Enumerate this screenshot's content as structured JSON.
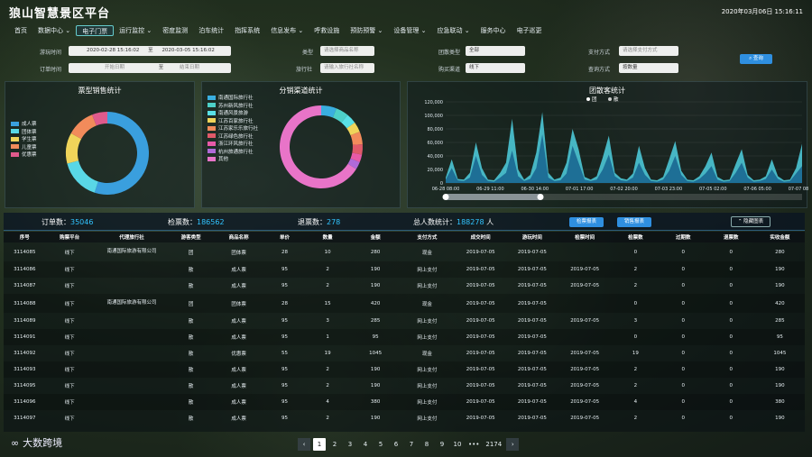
{
  "app": {
    "title": "狼山智慧景区平台",
    "clock": "2020年03月06日 15:16:11"
  },
  "nav": [
    "首页",
    "数据中心",
    "电子门票",
    "运行监控",
    "密度监测",
    "泊车统计",
    "指挥系统",
    "信息发布",
    "呼救设施",
    "预防预警",
    "设备管理",
    "应急联动",
    "服务中心",
    "电子巡更"
  ],
  "nav_dropdown": [
    false,
    true,
    false,
    true,
    false,
    false,
    false,
    true,
    false,
    true,
    true,
    true,
    false,
    false
  ],
  "nav_active": 2,
  "filters": {
    "travel_time_label": "游玩时间",
    "travel_start": "2020-02-28 15:16:02",
    "travel_end": "2020-03-05 15:16:02",
    "to1": "至",
    "order_time_label": "订单时间",
    "order_start": "开始日期",
    "order_end": "结束日期",
    "to2": "至",
    "type_label": "类型",
    "type_placeholder": "请选择商品名称",
    "agency_label": "旅行社",
    "agency_placeholder": "请输入旅行社名称",
    "group_type_label": "团散类型",
    "group_type_value": "全部",
    "buy_channel_label": "购买渠道",
    "buy_channel_value": "线下",
    "pay_label": "支付方式",
    "pay_placeholder": "请选择支付方式",
    "query_type_label": "查询方式",
    "query_type_value": "按数量",
    "search_btn": "查询"
  },
  "charts": [
    {
      "panel_title": "票型销售统计",
      "chart_data": {
        "type": "pie",
        "donut": true,
        "slices": [
          {
            "name": "成人票",
            "value": 55,
            "color": "#3a9fde"
          },
          {
            "name": "团体票",
            "value": 16,
            "color": "#59d7e6"
          },
          {
            "name": "学生票",
            "value": 12,
            "color": "#f0d45a"
          },
          {
            "name": "儿童票",
            "value": 11,
            "color": "#f28b5b"
          },
          {
            "name": "优惠票",
            "value": 6,
            "color": "#e05a8c"
          }
        ]
      }
    },
    {
      "panel_title": "分销渠道统计",
      "chart_data": {
        "type": "pie",
        "donut": true,
        "slices": [
          {
            "name": "南通国际旅行社",
            "value": 6,
            "color": "#3aaee0"
          },
          {
            "name": "苏州新风旅行社",
            "value": 5,
            "color": "#4dd0c8"
          },
          {
            "name": "南通风景旅游",
            "value": 4,
            "color": "#59e0e6"
          },
          {
            "name": "江苏百家旅行社",
            "value": 4,
            "color": "#f0d45a"
          },
          {
            "name": "江苏家乐乐旅行社",
            "value": 5,
            "color": "#f28b5b"
          },
          {
            "name": "江苏绿色旅行社",
            "value": 4,
            "color": "#e05a6a"
          },
          {
            "name": "浙江环风旅行社",
            "value": 3,
            "color": "#e85aa8"
          },
          {
            "name": "杭州旅通旅行社",
            "value": 3,
            "color": "#b06ad8"
          },
          {
            "name": "其他",
            "value": 66,
            "color": "#e874c8"
          }
        ]
      }
    },
    {
      "panel_title": "团散客统计",
      "chart_data": {
        "type": "area",
        "legend": [
          "团",
          "散"
        ],
        "yticks": [
          "120,000",
          "100,000",
          "80,000",
          "60,000",
          "40,000",
          "20,000",
          "0"
        ],
        "ylim": [
          0,
          120000
        ],
        "xticks": [
          "06-28 08:00",
          "06-29 11:00",
          "06-30 14:00",
          "07-01 17:00",
          "07-02 20:00",
          "07-03 23:00",
          "07-05 02:00",
          "07-06 05:00",
          "07-07 08:00"
        ],
        "series": [
          {
            "name": "团",
            "values": [
              5000,
              22000,
              4000,
              3000,
              8000,
              40000,
              12000,
              3000,
              2000,
              8000,
              15000,
              48000,
              10000,
              3000,
              6000,
              22000,
              72000,
              8000,
              3000,
              4000,
              14000,
              55000,
              30000,
              5000,
              3000,
              5000,
              20000,
              42000,
              10000,
              4000,
              3000,
              8000,
              30000,
              12000,
              3000,
              2000,
              5000,
              18000,
              40000,
              12000,
              3000,
              2000,
              6000,
              14000,
              25000,
              5000,
              2000,
              3000,
              15000,
              30000,
              8000,
              2000,
              3000,
              6000,
              20000,
              6000,
              2000,
              3000,
              14000,
              25000
            ]
          },
          {
            "name": "散",
            "values": [
              8000,
              35000,
              6000,
              5000,
              15000,
              60000,
              22000,
              5000,
              4000,
              15000,
              30000,
              95000,
              20000,
              5000,
              12000,
              45000,
              105000,
              15000,
              5000,
              8000,
              30000,
              80000,
              50000,
              9000,
              5000,
              10000,
              38000,
              70000,
              15000,
              7000,
              5000,
              14000,
              55000,
              22000,
              5000,
              4000,
              9000,
              35000,
              62000,
              18000,
              5000,
              4000,
              10000,
              25000,
              45000,
              9000,
              4000,
              5000,
              28000,
              50000,
              12000,
              4000,
              5000,
              10000,
              35000,
              10000,
              4000,
              5000,
              22000,
              58000
            ]
          }
        ]
      }
    }
  ],
  "summary": {
    "orders_label": "订单数：",
    "orders": "35046",
    "checked_label": "检票数：",
    "checked": "186562",
    "refund_label": "退票数：",
    "refund": "278",
    "people_label": "总人数统计：",
    "people": "188278",
    "people_unit": "人",
    "btn_check": "检票报表",
    "btn_sale": "销售报表",
    "btn_collapse": "隐藏图表"
  },
  "table": {
    "headers": [
      "序号",
      "购票平台",
      "代理旅行社",
      "游客类型",
      "商品名称",
      "单价",
      "数量",
      "金额",
      "支付方式",
      "成交时间",
      "游玩时间",
      "检票时间",
      "检票数",
      "过期数",
      "退票数",
      "实收金额"
    ],
    "rows": [
      [
        "3114085",
        "线下",
        "南通国际旅游有限公司",
        "团",
        "团体票",
        "28",
        "10",
        "280",
        "现金",
        "2019-07-05",
        "2019-07-05",
        "",
        "0",
        "0",
        "0",
        "280"
      ],
      [
        "3114086",
        "线下",
        "",
        "散",
        "成人票",
        "95",
        "2",
        "190",
        "网上支付",
        "2019-07-05",
        "2019-07-05",
        "2019-07-05",
        "2",
        "0",
        "0",
        "190"
      ],
      [
        "3114087",
        "线下",
        "",
        "散",
        "成人票",
        "95",
        "2",
        "190",
        "网上支付",
        "2019-07-05",
        "2019-07-05",
        "2019-07-05",
        "2",
        "0",
        "0",
        "190"
      ],
      [
        "3114088",
        "线下",
        "南通国际旅游有限公司",
        "团",
        "团体票",
        "28",
        "15",
        "420",
        "现金",
        "2019-07-05",
        "2019-07-05",
        "",
        "0",
        "0",
        "0",
        "420"
      ],
      [
        "3114089",
        "线下",
        "",
        "散",
        "成人票",
        "95",
        "3",
        "285",
        "网上支付",
        "2019-07-05",
        "2019-07-05",
        "2019-07-05",
        "3",
        "0",
        "0",
        "285"
      ],
      [
        "3114091",
        "线下",
        "",
        "散",
        "成人票",
        "95",
        "1",
        "95",
        "网上支付",
        "2019-07-05",
        "2019-07-05",
        "",
        "0",
        "0",
        "0",
        "95"
      ],
      [
        "3114092",
        "线下",
        "",
        "散",
        "优惠票",
        "55",
        "19",
        "1045",
        "现金",
        "2019-07-05",
        "2019-07-05",
        "2019-07-05",
        "19",
        "0",
        "0",
        "1045"
      ],
      [
        "3114093",
        "线下",
        "",
        "散",
        "成人票",
        "95",
        "2",
        "190",
        "网上支付",
        "2019-07-05",
        "2019-07-05",
        "2019-07-05",
        "2",
        "0",
        "0",
        "190"
      ],
      [
        "3114095",
        "线下",
        "",
        "散",
        "成人票",
        "95",
        "2",
        "190",
        "网上支付",
        "2019-07-05",
        "2019-07-05",
        "2019-07-05",
        "2",
        "0",
        "0",
        "190"
      ],
      [
        "3114096",
        "线下",
        "",
        "散",
        "成人票",
        "95",
        "4",
        "380",
        "网上支付",
        "2019-07-05",
        "2019-07-05",
        "2019-07-05",
        "4",
        "0",
        "0",
        "380"
      ],
      [
        "3114097",
        "线下",
        "",
        "散",
        "成人票",
        "95",
        "2",
        "190",
        "网上支付",
        "2019-07-05",
        "2019-07-05",
        "2019-07-05",
        "2",
        "0",
        "0",
        "190"
      ]
    ]
  },
  "pager": {
    "prev": "‹",
    "next": "›",
    "pages": [
      "1",
      "2",
      "3",
      "4",
      "5",
      "6",
      "7",
      "8",
      "9",
      "10"
    ],
    "ellipsis": "•••",
    "last": "2174",
    "current": "1"
  },
  "watermark": "大数跨境"
}
